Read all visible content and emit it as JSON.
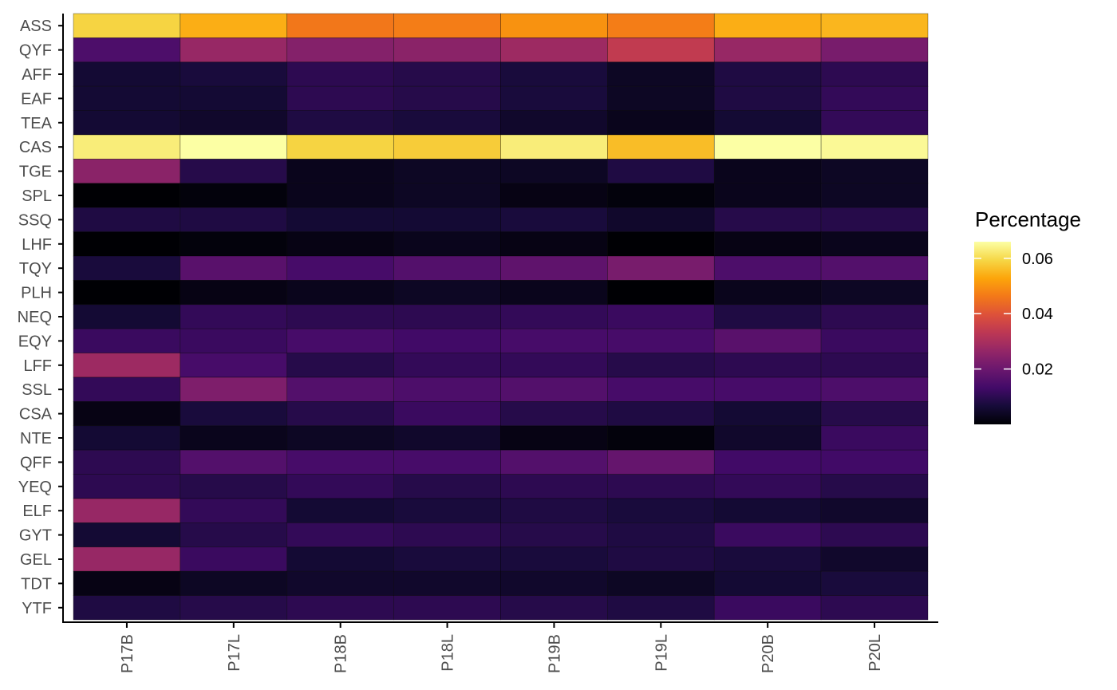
{
  "chart_data": {
    "type": "heatmap",
    "title": "",
    "xlabel": "",
    "ylabel": "",
    "x": [
      "P17B",
      "P17L",
      "P18B",
      "P18L",
      "P19B",
      "P19L",
      "P20B",
      "P20L"
    ],
    "y": [
      "ASS",
      "QYF",
      "AFF",
      "EAF",
      "TEA",
      "CAS",
      "TGE",
      "SPL",
      "SSQ",
      "LHF",
      "TQY",
      "PLH",
      "NEQ",
      "EQY",
      "LFF",
      "SSL",
      "CSA",
      "NTE",
      "QFF",
      "YEQ",
      "ELF",
      "GYT",
      "GEL",
      "TDT",
      "YTF"
    ],
    "values": [
      [
        0.059,
        0.054,
        0.046,
        0.047,
        0.05,
        0.047,
        0.054,
        0.055
      ],
      [
        0.015,
        0.027,
        0.024,
        0.025,
        0.028,
        0.034,
        0.027,
        0.022
      ],
      [
        0.006,
        0.007,
        0.01,
        0.009,
        0.007,
        0.004,
        0.008,
        0.01
      ],
      [
        0.006,
        0.006,
        0.01,
        0.009,
        0.007,
        0.004,
        0.008,
        0.011
      ],
      [
        0.006,
        0.005,
        0.008,
        0.007,
        0.005,
        0.003,
        0.006,
        0.011
      ],
      [
        0.063,
        0.066,
        0.059,
        0.058,
        0.063,
        0.056,
        0.066,
        0.065
      ],
      [
        0.025,
        0.009,
        0.003,
        0.004,
        0.004,
        0.008,
        0.003,
        0.004
      ],
      [
        0.0,
        0.001,
        0.003,
        0.004,
        0.002,
        0.001,
        0.003,
        0.004
      ],
      [
        0.008,
        0.008,
        0.006,
        0.006,
        0.007,
        0.005,
        0.009,
        0.009
      ],
      [
        0.0,
        0.001,
        0.002,
        0.003,
        0.002,
        0.0,
        0.002,
        0.003
      ],
      [
        0.007,
        0.017,
        0.014,
        0.016,
        0.018,
        0.022,
        0.015,
        0.016
      ],
      [
        0.0,
        0.002,
        0.003,
        0.004,
        0.003,
        0.0,
        0.003,
        0.004
      ],
      [
        0.006,
        0.011,
        0.01,
        0.01,
        0.011,
        0.012,
        0.008,
        0.01
      ],
      [
        0.012,
        0.012,
        0.014,
        0.013,
        0.014,
        0.014,
        0.017,
        0.012
      ],
      [
        0.028,
        0.014,
        0.009,
        0.011,
        0.011,
        0.009,
        0.01,
        0.01
      ],
      [
        0.011,
        0.023,
        0.016,
        0.015,
        0.016,
        0.014,
        0.014,
        0.015
      ],
      [
        0.002,
        0.007,
        0.009,
        0.012,
        0.009,
        0.008,
        0.006,
        0.009
      ],
      [
        0.006,
        0.003,
        0.004,
        0.005,
        0.002,
        0.001,
        0.005,
        0.012
      ],
      [
        0.01,
        0.016,
        0.014,
        0.014,
        0.016,
        0.019,
        0.013,
        0.013
      ],
      [
        0.01,
        0.009,
        0.011,
        0.009,
        0.01,
        0.01,
        0.011,
        0.009
      ],
      [
        0.027,
        0.011,
        0.006,
        0.007,
        0.008,
        0.007,
        0.006,
        0.005
      ],
      [
        0.006,
        0.009,
        0.011,
        0.01,
        0.009,
        0.008,
        0.012,
        0.01
      ],
      [
        0.027,
        0.012,
        0.006,
        0.007,
        0.007,
        0.008,
        0.007,
        0.005
      ],
      [
        0.002,
        0.004,
        0.005,
        0.005,
        0.005,
        0.004,
        0.006,
        0.007
      ],
      [
        0.008,
        0.009,
        0.01,
        0.01,
        0.009,
        0.008,
        0.012,
        0.01
      ]
    ],
    "colorbar": {
      "title": "Percentage",
      "colormap": "inferno",
      "range": [
        0.0,
        0.066
      ],
      "ticks": [
        0.02,
        0.04,
        0.06
      ],
      "tick_labels": [
        "0.02",
        "0.04",
        "0.06"
      ]
    },
    "grid": false,
    "legend_position": "right"
  }
}
